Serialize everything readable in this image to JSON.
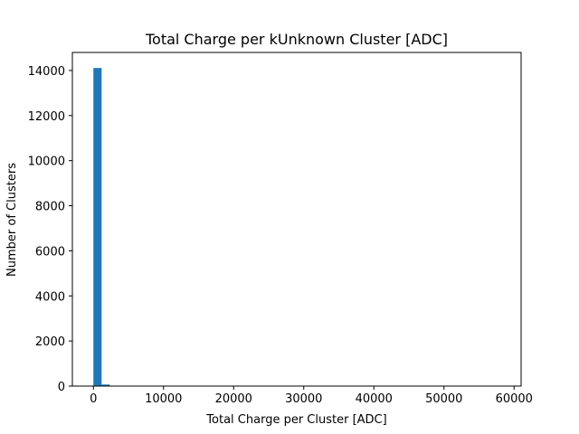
{
  "chart_data": {
    "type": "bar",
    "title": "Total Charge per kUnknown Cluster [ADC]",
    "xlabel": "Total Charge per Cluster [ADC]",
    "ylabel": "Number of Clusters",
    "xlim": [
      -3000,
      61000
    ],
    "ylim": [
      0,
      14800
    ],
    "xticks": [
      0,
      10000,
      20000,
      30000,
      40000,
      50000,
      60000
    ],
    "yticks": [
      0,
      2000,
      4000,
      6000,
      8000,
      10000,
      12000,
      14000
    ],
    "bin_width": 1170,
    "bins": [
      {
        "x": 0,
        "value": 14110
      },
      {
        "x": 1170,
        "value": 70
      },
      {
        "x": 2340,
        "value": 5
      },
      {
        "x": 3510,
        "value": 2
      }
    ],
    "bar_color": "#1f77b4",
    "grid": false
  }
}
